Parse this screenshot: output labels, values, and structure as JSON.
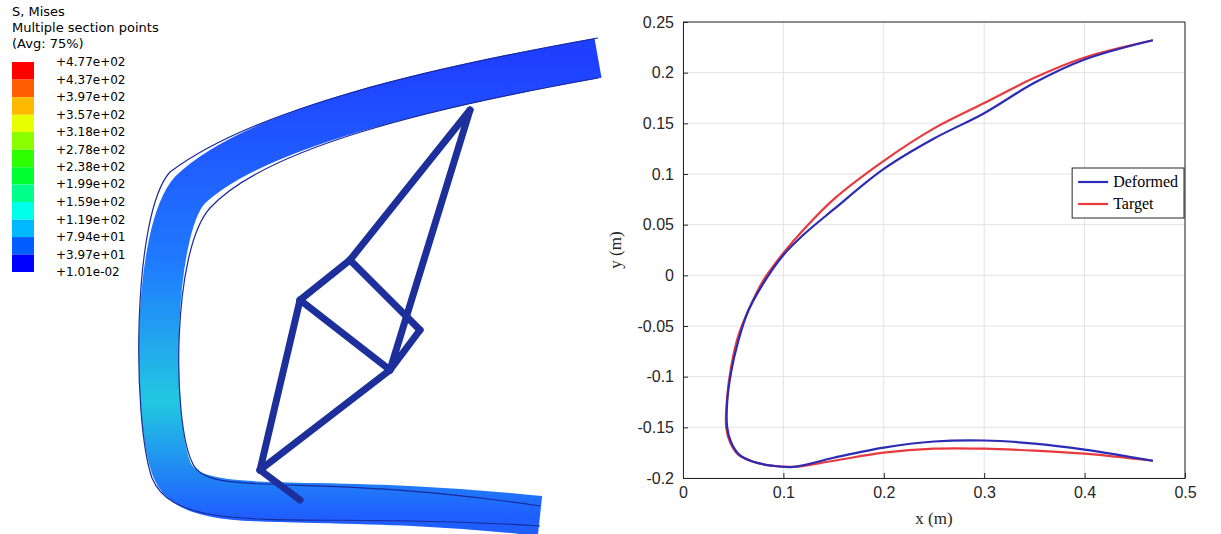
{
  "chart_data": [
    {
      "type": "contour",
      "title": "S, Mises",
      "subtitle": "Multiple section points",
      "annotation": "(Avg: 75%)",
      "colorbar_ticks": [
        {
          "value": 477,
          "label": "+4.77e+02"
        },
        {
          "value": 437,
          "label": "+4.37e+02"
        },
        {
          "value": 397,
          "label": "+3.97e+02"
        },
        {
          "value": 357,
          "label": "+3.57e+02"
        },
        {
          "value": 318,
          "label": "+3.18e+02"
        },
        {
          "value": 278,
          "label": "+2.78e+02"
        },
        {
          "value": 238,
          "label": "+2.38e+02"
        },
        {
          "value": 199,
          "label": "+1.99e+02"
        },
        {
          "value": 159,
          "label": "+1.59e+02"
        },
        {
          "value": 119,
          "label": "+1.19e+02"
        },
        {
          "value": 79.4,
          "label": "+7.94e+01"
        },
        {
          "value": 39.7,
          "label": "+3.97e+01"
        },
        {
          "value": 0.0101,
          "label": "+1.01e-02"
        }
      ],
      "colors": [
        "#ff0000",
        "#ff5d00",
        "#ffb900",
        "#e8ff00",
        "#8bff00",
        "#2eff00",
        "#00ff2e",
        "#00ff8b",
        "#00ffe8",
        "#00b9ff",
        "#005dff",
        "#0000ff"
      ]
    },
    {
      "type": "line",
      "x_label": "x (m)",
      "y_label": "y (m)",
      "xlim": [
        0,
        0.5
      ],
      "xticks": [
        0,
        0.1,
        0.2,
        0.3,
        0.4,
        0.5
      ],
      "ylim": [
        -0.2,
        0.25
      ],
      "yticks": [
        -0.2,
        -0.15,
        -0.1,
        -0.05,
        0,
        0.05,
        0.1,
        0.15,
        0.2,
        0.25
      ],
      "grid": true,
      "legend": "right",
      "series": [
        {
          "name": "Deformed",
          "color": "#2b2bb5",
          "x": [
            0.468,
            0.4,
            0.35,
            0.3,
            0.25,
            0.2,
            0.15,
            0.12,
            0.1,
            0.08,
            0.065,
            0.055,
            0.048,
            0.044,
            0.044,
            0.048,
            0.056,
            0.07,
            0.09,
            0.11,
            0.15,
            0.2,
            0.25,
            0.3,
            0.35,
            0.4,
            0.468
          ],
          "values": [
            0.232,
            0.213,
            0.19,
            0.16,
            0.135,
            0.105,
            0.065,
            0.04,
            0.02,
            -0.008,
            -0.035,
            -0.065,
            -0.095,
            -0.125,
            -0.15,
            -0.165,
            -0.177,
            -0.184,
            -0.188,
            -0.189,
            -0.18,
            -0.17,
            -0.164,
            -0.163,
            -0.166,
            -0.172,
            -0.183
          ]
        },
        {
          "name": "Target",
          "color": "#e8393f",
          "x": [
            0.468,
            0.4,
            0.35,
            0.3,
            0.25,
            0.2,
            0.15,
            0.12,
            0.1,
            0.08,
            0.065,
            0.055,
            0.048,
            0.044,
            0.043,
            0.047,
            0.055,
            0.07,
            0.09,
            0.11,
            0.15,
            0.2,
            0.25,
            0.3,
            0.35,
            0.4,
            0.468
          ],
          "values": [
            0.232,
            0.215,
            0.195,
            0.17,
            0.145,
            0.113,
            0.075,
            0.045,
            0.022,
            -0.005,
            -0.035,
            -0.06,
            -0.09,
            -0.12,
            -0.15,
            -0.165,
            -0.177,
            -0.184,
            -0.188,
            -0.189,
            -0.183,
            -0.175,
            -0.171,
            -0.171,
            -0.173,
            -0.176,
            -0.183
          ]
        }
      ]
    }
  ]
}
